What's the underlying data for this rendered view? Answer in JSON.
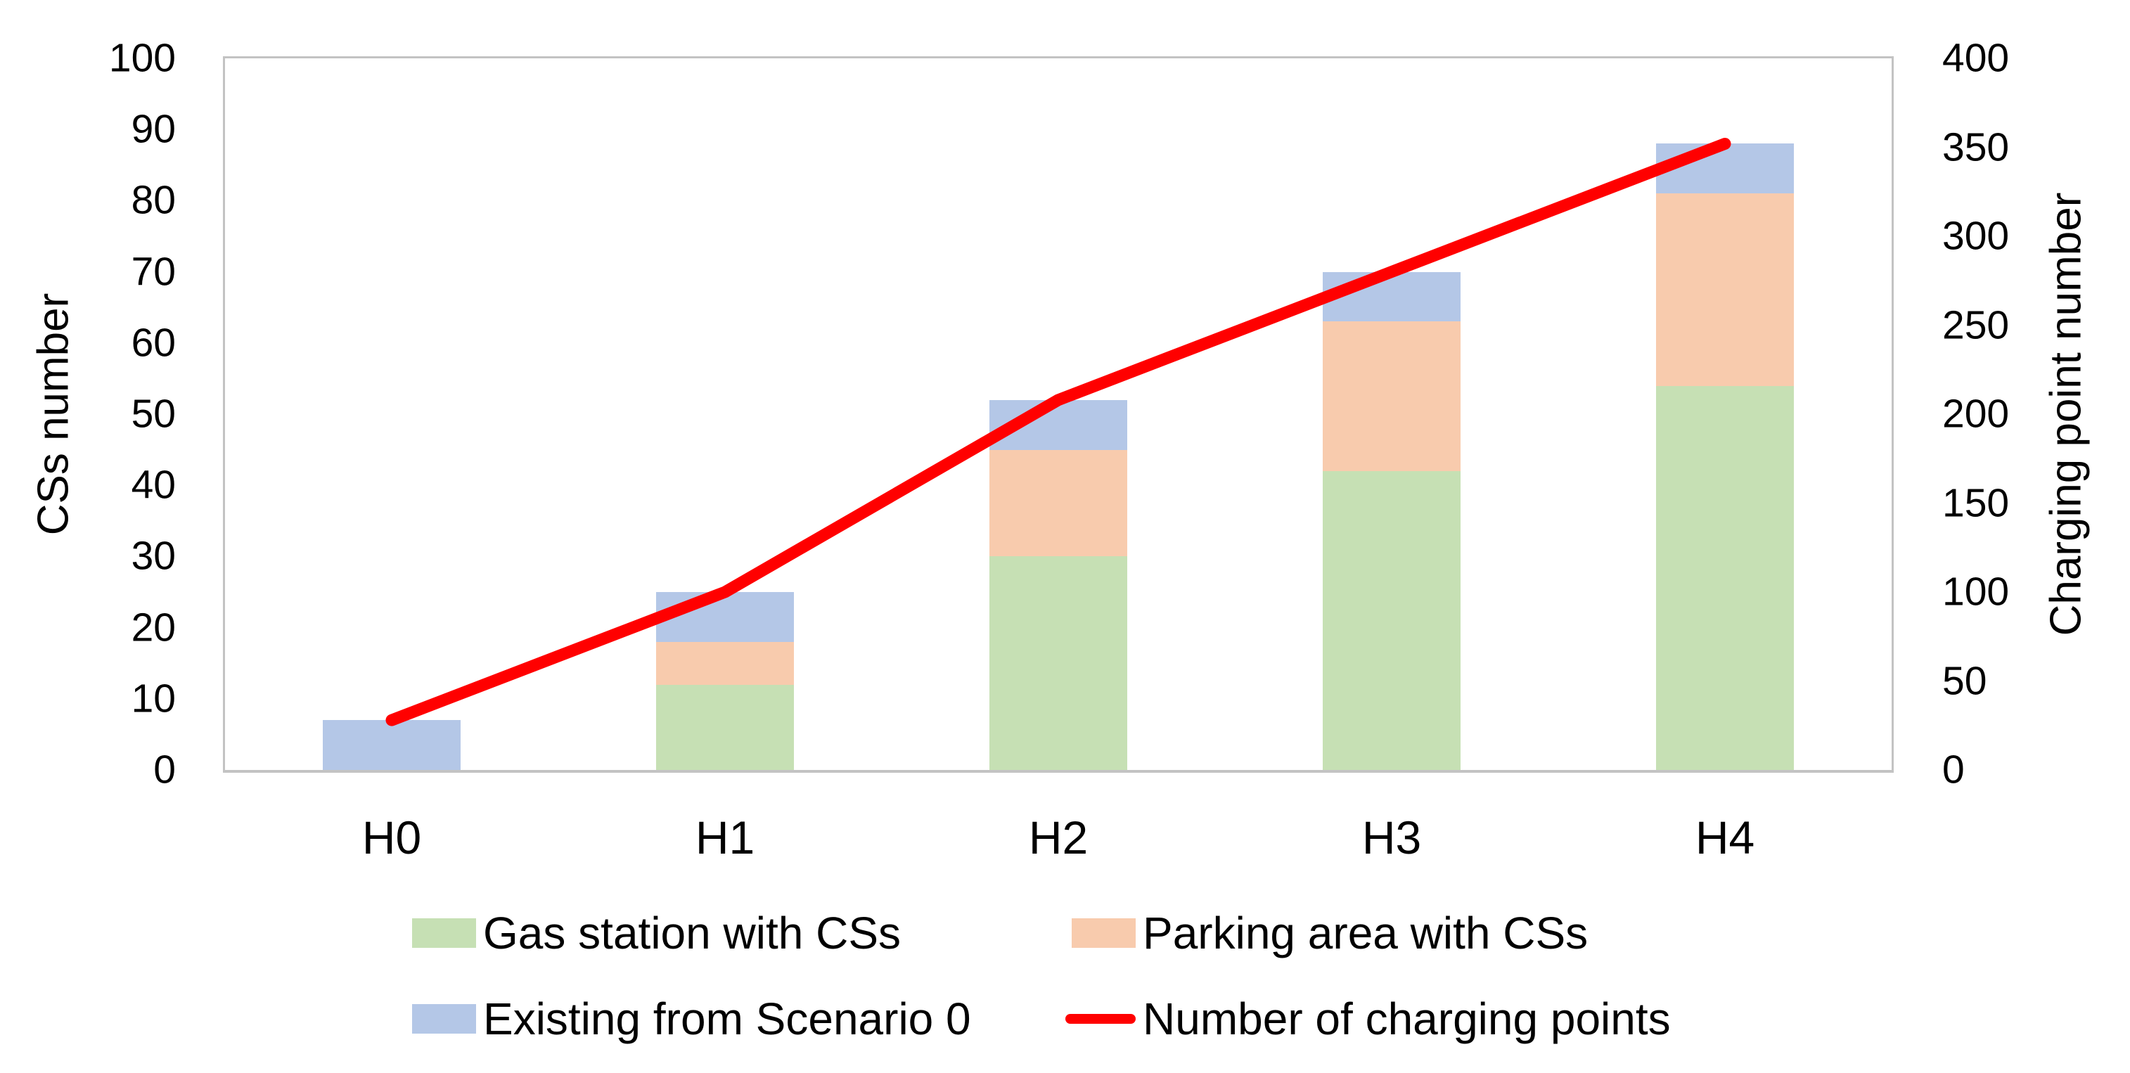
{
  "chart_data": {
    "type": "combo-stacked-bar-line",
    "title": "",
    "categories": [
      "H0",
      "H1",
      "H2",
      "H3",
      "H4"
    ],
    "bar_series": [
      {
        "name": "Gas station with CSs",
        "color": "#c6e0b4",
        "axis": "left",
        "values": [
          0,
          12,
          30,
          42,
          54
        ]
      },
      {
        "name": "Parking area with CSs",
        "color": "#f8cbad",
        "axis": "left",
        "values": [
          0,
          6,
          15,
          21,
          27
        ]
      },
      {
        "name": "Existing from Scenario 0",
        "color": "#b4c7e7",
        "axis": "left",
        "values": [
          7,
          7,
          7,
          7,
          7
        ]
      }
    ],
    "bar_totals": [
      7,
      25,
      52,
      70,
      88
    ],
    "line_series": [
      {
        "name": "Number of charging points",
        "color": "#ff0000",
        "axis": "right",
        "values": [
          28,
          100,
          208,
          280,
          352
        ]
      }
    ],
    "left_axis": {
      "title": "CSs number",
      "min": 0,
      "max": 100,
      "step": 10,
      "ticks": [
        0,
        10,
        20,
        30,
        40,
        50,
        60,
        70,
        80,
        90,
        100
      ]
    },
    "right_axis": {
      "title": "Charging point number",
      "min": 0,
      "max": 400,
      "step": 50,
      "ticks": [
        0,
        50,
        100,
        150,
        200,
        250,
        300,
        350,
        400
      ]
    },
    "grid": false,
    "legend_position": "bottom",
    "plot_border_color": "#c3c3c3",
    "background_color": "#ffffff",
    "text_color": "#000000"
  }
}
